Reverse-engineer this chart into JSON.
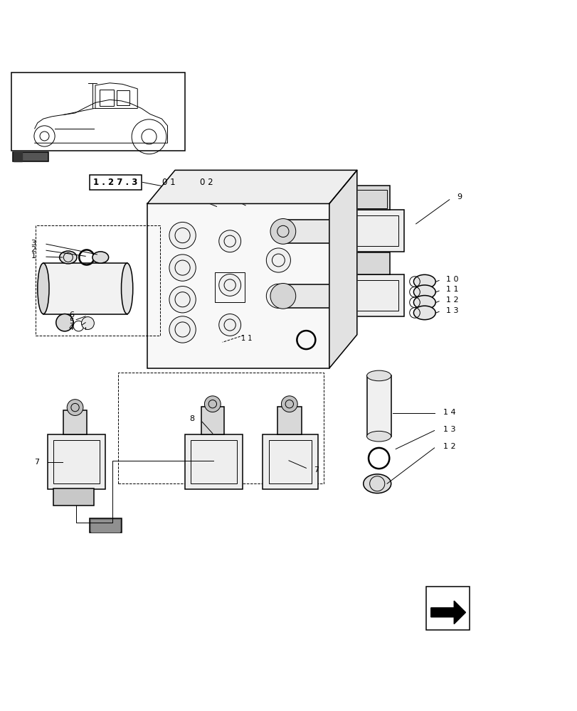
{
  "bg_color": "#ffffff",
  "line_color": "#000000",
  "fig_width": 8.12,
  "fig_height": 10.0,
  "dpi": 100,
  "ref_label": "1 . 2 7 . 3",
  "sub_labels": [
    "0 1",
    "0 2"
  ]
}
